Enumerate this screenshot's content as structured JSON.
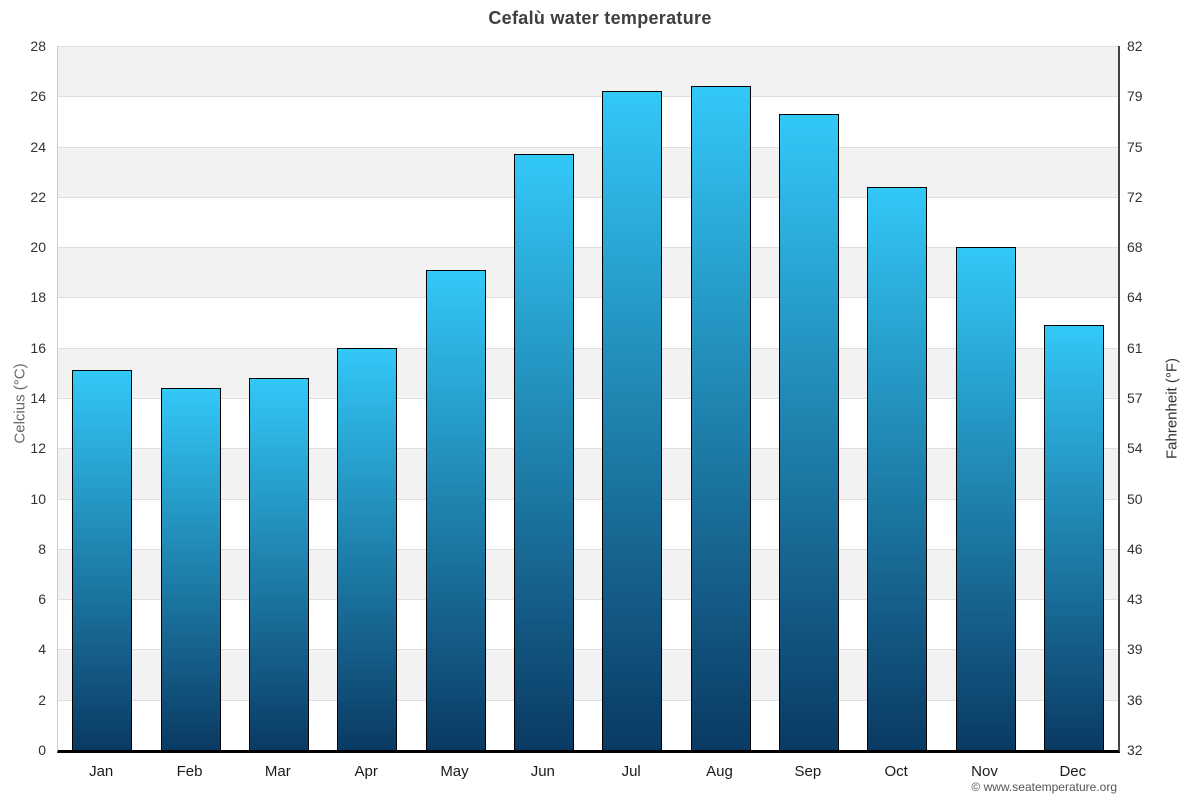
{
  "title": "Cefalù water temperature",
  "copyright": "© www.seatemperature.org",
  "chart_data": {
    "type": "bar",
    "title": "Cefalù water temperature",
    "categories": [
      "Jan",
      "Feb",
      "Mar",
      "Apr",
      "May",
      "Jun",
      "Jul",
      "Aug",
      "Sep",
      "Oct",
      "Nov",
      "Dec"
    ],
    "values": [
      15.1,
      14.4,
      14.8,
      16.0,
      19.1,
      23.7,
      26.2,
      26.4,
      25.3,
      22.4,
      20.0,
      16.9
    ],
    "series_name": "Water temperature (°C)",
    "xlabel": "",
    "ylabel_left": "Celcius (°C)",
    "ylabel_right": "Fahrenheit (°F)",
    "ylim": [
      0,
      28
    ],
    "celsius_ticks": [
      28,
      26,
      24,
      22,
      20,
      18,
      16,
      14,
      12,
      10,
      8,
      6,
      4,
      2,
      0
    ],
    "fahrenheit_tick_labels": [
      "82",
      "79",
      "75",
      "72",
      "68",
      "64",
      "61",
      "57",
      "54",
      "50",
      "46",
      "43",
      "39",
      "36",
      "32"
    ],
    "grid": true,
    "legend": "none",
    "band_colors": [
      "#f2f2f2",
      "#ffffff"
    ],
    "bar_gradient_top": "#33c8f7",
    "bar_gradient_bottom": "#0a3a63",
    "bar_border_color": "#000000"
  }
}
